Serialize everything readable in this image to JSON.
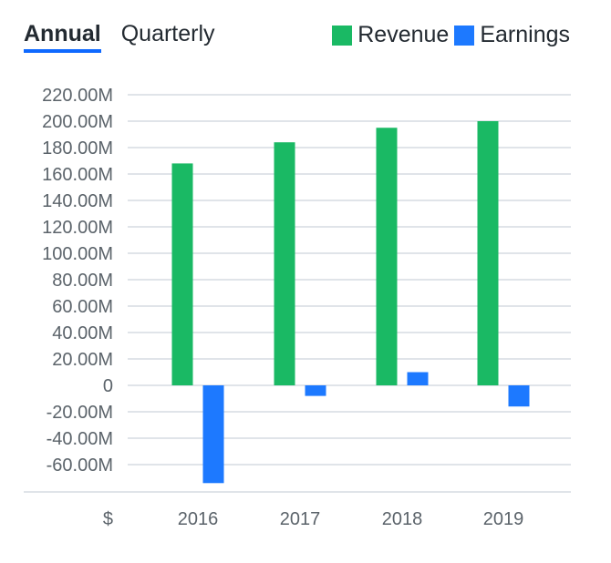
{
  "tabs": [
    {
      "label": "Annual",
      "active": true
    },
    {
      "label": "Quarterly",
      "active": false
    }
  ],
  "currency_label": "$",
  "colors": {
    "revenue": "#1ab964",
    "earnings": "#1d79ff",
    "grid": "#e0e4e9",
    "accent": "#0f69ff"
  },
  "chart_data": {
    "type": "bar",
    "categories": [
      "2016",
      "2017",
      "2018",
      "2019"
    ],
    "series": [
      {
        "name": "Revenue",
        "values": [
          168,
          184,
          195,
          200
        ]
      },
      {
        "name": "Earnings",
        "values": [
          -74,
          -8,
          10,
          -16
        ]
      }
    ],
    "ylim": [
      -80,
      220
    ],
    "y_tick_values": [
      220,
      200,
      180,
      160,
      140,
      120,
      100,
      80,
      60,
      40,
      20,
      0,
      -20,
      -40,
      -60
    ],
    "y_tick_labels": [
      "220.00M",
      "200.00M",
      "180.00M",
      "160.00M",
      "140.00M",
      "120.00M",
      "100.00M",
      "80.00M",
      "60.00M",
      "40.00M",
      "20.00M",
      "0",
      "-20.00M",
      "-40.00M",
      "-60.00M"
    ],
    "legend_position": "top-right",
    "grid": true
  }
}
